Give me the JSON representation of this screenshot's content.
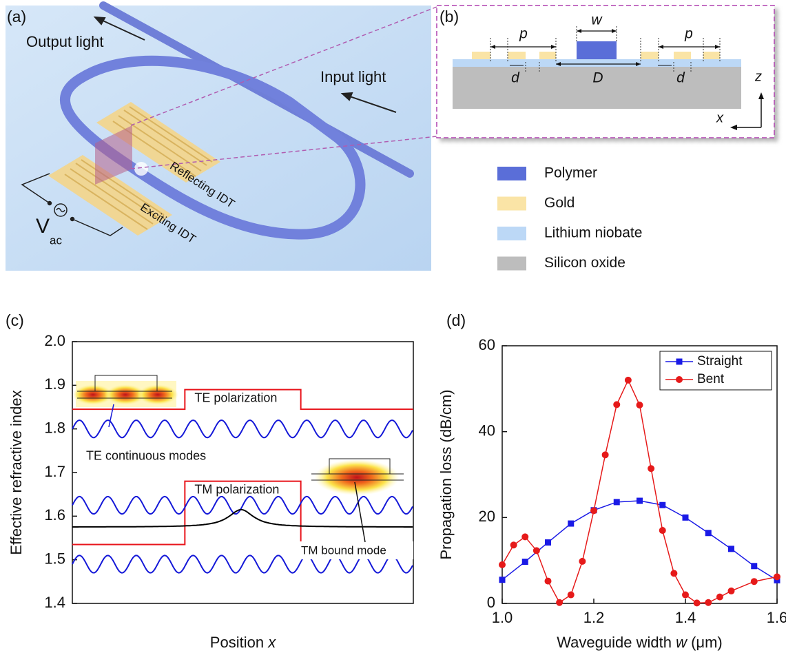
{
  "panel_a": {
    "label": "(a)",
    "output_light": "Output light",
    "input_light": "Input light",
    "reflecting_idt": "Reflecting IDT",
    "exciting_idt": "Exciting IDT",
    "voltage": "V",
    "voltage_sub": "ac"
  },
  "panel_b": {
    "label": "(b)",
    "dims": [
      "p",
      "w",
      "p",
      "d",
      "D",
      "d"
    ],
    "axes": [
      "z",
      "x"
    ],
    "legend": [
      {
        "name": "Polymer",
        "color": "#5a6ed8"
      },
      {
        "name": "Gold",
        "color": "#fae4a6"
      },
      {
        "name": "Lithium niobate",
        "color": "#bcd8f6"
      },
      {
        "name": "Silicon oxide",
        "color": "#bdbdbd"
      }
    ]
  },
  "chart_data": [
    {
      "type": "step",
      "label": "(c)",
      "xlabel": [
        "Position ",
        "x"
      ],
      "ylabel": "Effective refractive index",
      "ylim": [
        1.4,
        2.0
      ],
      "yticks": [
        1.4,
        1.5,
        1.6,
        1.7,
        1.8,
        1.9,
        {
          "value": 2,
          "label": "2.0"
        }
      ],
      "steps": [
        {
          "name": "TE polarization",
          "color": "#e8141b",
          "values": [
            1.845,
            1.89
          ]
        },
        {
          "name": "TM polarization",
          "color": "#e8141b",
          "values": [
            1.535,
            1.68
          ]
        }
      ],
      "waves": [
        {
          "name": "TE continuous modes",
          "color": "#1418d8",
          "center": 1.8,
          "amplitude": 0.02
        },
        {
          "color": "#1418d8",
          "center": 1.625,
          "amplitude": 0.02
        },
        {
          "color": "#1418d8",
          "center": 1.49,
          "amplitude": 0.02
        }
      ],
      "bound_mode": {
        "name": "TM bound mode",
        "color": "#000000",
        "values": [
          1.575,
          1.615
        ]
      }
    },
    {
      "type": "line",
      "label": "(d)",
      "xlabel": [
        "Waveguide width ",
        "w",
        " (μm)"
      ],
      "ylabel": "Propagation loss (dB/cm)",
      "xlim": [
        1,
        1.6
      ],
      "xticks": [
        {
          "value": 1,
          "label": "1.0"
        },
        1.2,
        1.4,
        1.6
      ],
      "ylim": [
        0,
        60
      ],
      "yticks": [
        0,
        20,
        40,
        60
      ],
      "legend": "upper right",
      "series": [
        {
          "name": "Straight",
          "color": "#1a1ae6",
          "marker": "square",
          "x": [
            1.0,
            1.05,
            1.1,
            1.15,
            1.2,
            1.25,
            1.3,
            1.35,
            1.4,
            1.45,
            1.5,
            1.55,
            1.6
          ],
          "values": [
            5.5,
            9.7,
            14.2,
            18.6,
            21.7,
            23.6,
            23.9,
            22.9,
            20.0,
            16.4,
            12.7,
            8.7,
            5.4
          ]
        },
        {
          "name": "Bent",
          "color": "#e61a1a",
          "marker": "circle",
          "x": [
            1.0,
            1.025,
            1.05,
            1.075,
            1.1,
            1.125,
            1.15,
            1.175,
            1.2,
            1.225,
            1.25,
            1.275,
            1.3,
            1.325,
            1.35,
            1.375,
            1.4,
            1.425,
            1.45,
            1.475,
            1.5,
            1.55,
            1.6
          ],
          "values": [
            9,
            13.6,
            15.5,
            12.3,
            5.2,
            0.2,
            2,
            9.8,
            21.6,
            34.6,
            46.3,
            52,
            46.2,
            31.4,
            17,
            7,
            2,
            0.1,
            0.2,
            1.5,
            2.9,
            5.1,
            6.2
          ]
        }
      ]
    }
  ]
}
